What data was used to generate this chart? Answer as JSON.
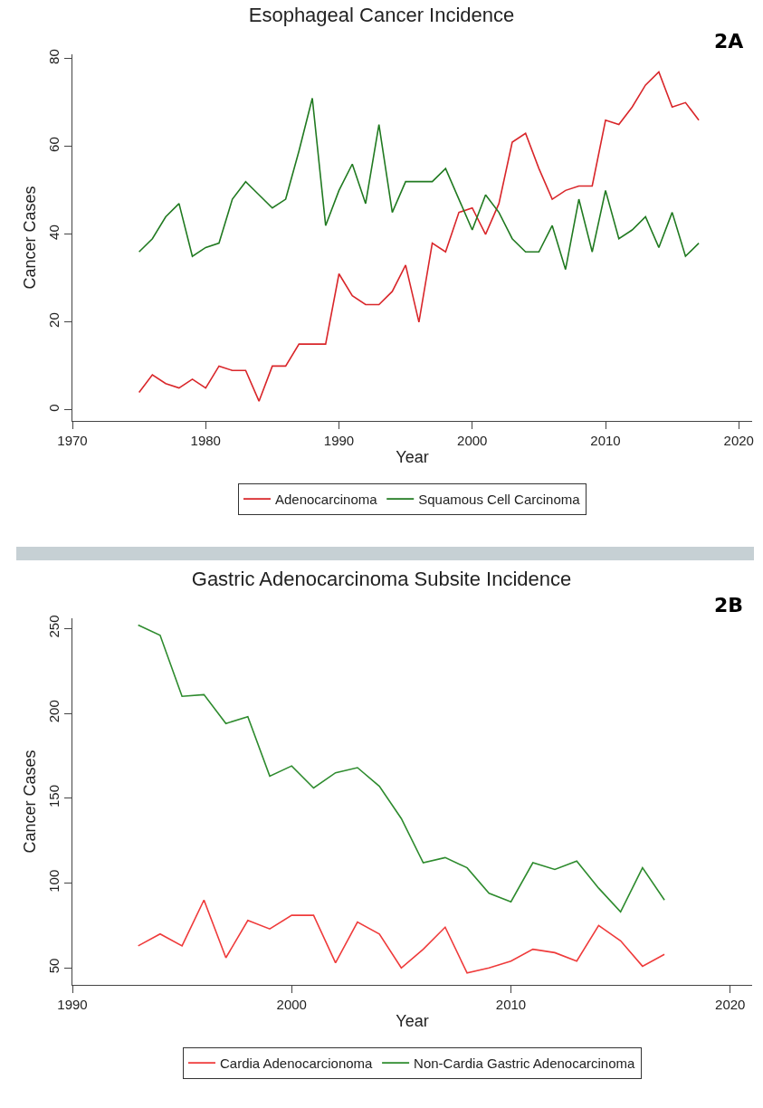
{
  "chart_data": [
    {
      "type": "line",
      "title": "Esophageal Cancer Incidence",
      "xlabel": "Year",
      "ylabel": "Cancer Cases",
      "annotations": [
        "2A"
      ],
      "x": [
        1975,
        1976,
        1977,
        1978,
        1979,
        1980,
        1981,
        1982,
        1983,
        1984,
        1985,
        1986,
        1987,
        1988,
        1989,
        1990,
        1991,
        1992,
        1993,
        1994,
        1995,
        1996,
        1997,
        1998,
        1999,
        2000,
        2001,
        2002,
        2003,
        2004,
        2005,
        2006,
        2007,
        2008,
        2009,
        2010,
        2011,
        2012,
        2013,
        2014,
        2015,
        2016,
        2017
      ],
      "series": [
        {
          "name": "Adenocarcinoma",
          "color": "#d9262a",
          "values": [
            4,
            8,
            6,
            5,
            7,
            5,
            10,
            9,
            9,
            2,
            10,
            10,
            15,
            15,
            15,
            31,
            26,
            24,
            24,
            27,
            33,
            20,
            38,
            36,
            45,
            46,
            40,
            47,
            61,
            63,
            55,
            48,
            50,
            51,
            51,
            66,
            65,
            69,
            74,
            77,
            69,
            70,
            66
          ]
        },
        {
          "name": "Squamous Cell Carcinoma",
          "color": "#217a21",
          "values": [
            36,
            39,
            44,
            47,
            35,
            37,
            38,
            48,
            52,
            49,
            46,
            48,
            59,
            71,
            42,
            50,
            56,
            47,
            65,
            45,
            52,
            52,
            52,
            55,
            48,
            41,
            49,
            45,
            39,
            36,
            36,
            42,
            32,
            48,
            36,
            50,
            39,
            41,
            44,
            37,
            45,
            35,
            38
          ]
        }
      ],
      "xlim": [
        1970,
        2021
      ],
      "xticks": [
        1970,
        1980,
        1990,
        2000,
        2010,
        2020
      ],
      "ylim": [
        -2.5,
        81
      ],
      "yticks": [
        0,
        20,
        40,
        60,
        80
      ],
      "grid": false,
      "legend": "bottom",
      "marker": "none",
      "line_style": "solid"
    },
    {
      "type": "line",
      "title": "Gastric Adenocarcinoma Subsite Incidence",
      "xlabel": "Year",
      "ylabel": "Cancer Cases",
      "annotations": [
        "2B"
      ],
      "x": [
        1993,
        1994,
        1995,
        1996,
        1997,
        1998,
        1999,
        2000,
        2001,
        2002,
        2003,
        2004,
        2005,
        2006,
        2007,
        2008,
        2009,
        2010,
        2011,
        2012,
        2013,
        2014,
        2015,
        2016,
        2017
      ],
      "series": [
        {
          "name": "Cardia Adenocarcionoma",
          "color": "#ef3b3b",
          "values": [
            63,
            70,
            63,
            90,
            56,
            78,
            73,
            81,
            81,
            53,
            77,
            70,
            50,
            61,
            74,
            47,
            50,
            54,
            61,
            59,
            54,
            75,
            66,
            51,
            58
          ]
        },
        {
          "name": "Non-Cardia Gastric Adenocarcinoma",
          "color": "#2e8b2e",
          "values": [
            252,
            246,
            210,
            211,
            194,
            198,
            163,
            169,
            156,
            165,
            168,
            157,
            138,
            112,
            115,
            109,
            94,
            89,
            112,
            108,
            113,
            97,
            83,
            109,
            90
          ]
        }
      ],
      "xlim": [
        1990,
        2021
      ],
      "xticks": [
        1990,
        2000,
        2010,
        2020
      ],
      "ylim": [
        40,
        256
      ],
      "yticks": [
        50,
        100,
        150,
        200,
        250
      ],
      "grid": false,
      "legend": "bottom",
      "marker": "none",
      "line_style": "solid"
    }
  ]
}
